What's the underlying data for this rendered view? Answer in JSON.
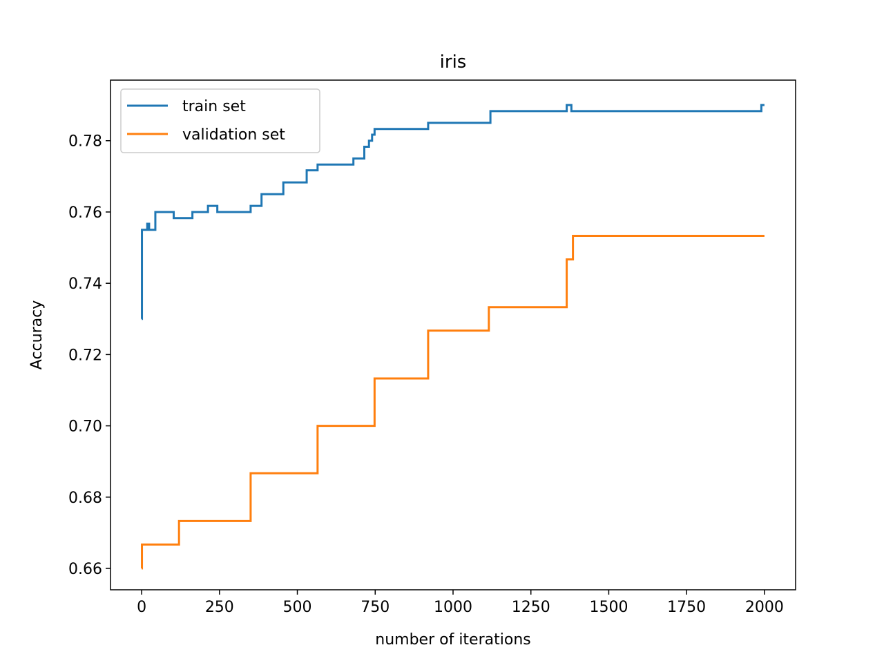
{
  "chart_data": {
    "type": "line",
    "title": "iris",
    "xlabel": "number of iterations",
    "ylabel": "Accuracy",
    "xlim": [
      -100,
      2100
    ],
    "ylim": [
      0.654,
      0.797
    ],
    "x_ticks": [
      0,
      250,
      500,
      750,
      1000,
      1250,
      1500,
      1750,
      2000
    ],
    "y_ticks": [
      0.66,
      0.68,
      0.7,
      0.72,
      0.74,
      0.76,
      0.78
    ],
    "x_tick_labels": [
      "0",
      "250",
      "500",
      "750",
      "1000",
      "1250",
      "1500",
      "1750",
      "2000"
    ],
    "y_tick_labels": [
      "0.66",
      "0.68",
      "0.70",
      "0.72",
      "0.74",
      "0.76",
      "0.78"
    ],
    "grid": false,
    "legend_position": "top-left",
    "series": [
      {
        "name": "train set",
        "color": "#1f77b4",
        "step": true,
        "x": [
          0,
          1,
          2,
          18,
          24,
          44,
          103,
          163,
          213,
          243,
          350,
          385,
          455,
          530,
          565,
          680,
          715,
          730,
          740,
          748,
          920,
          1120,
          1365,
          1380,
          1990,
          2000
        ],
        "y": [
          0.73,
          0.755,
          0.755,
          0.7567,
          0.755,
          0.76,
          0.7583,
          0.76,
          0.7617,
          0.76,
          0.7617,
          0.765,
          0.7683,
          0.7717,
          0.7733,
          0.775,
          0.7783,
          0.78,
          0.7817,
          0.7833,
          0.785,
          0.7883,
          0.79,
          0.7883,
          0.79,
          0.79
        ]
      },
      {
        "name": "validation set",
        "color": "#ff7f0e",
        "step": true,
        "x": [
          0,
          1,
          120,
          350,
          565,
          748,
          920,
          1115,
          1365,
          1385,
          2000
        ],
        "y": [
          0.66,
          0.6667,
          0.6733,
          0.6867,
          0.7,
          0.7133,
          0.7267,
          0.7333,
          0.7467,
          0.7533,
          0.7533
        ]
      }
    ]
  }
}
